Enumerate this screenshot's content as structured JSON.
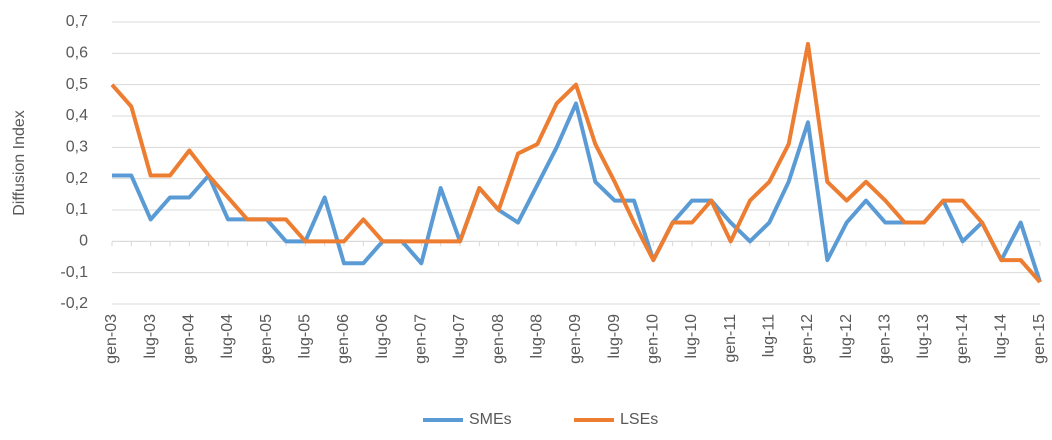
{
  "chart_data": {
    "type": "line",
    "y_label": "Diffusion Index",
    "categories": [
      "gen-03",
      null,
      "lug-03",
      null,
      "gen-04",
      null,
      "lug-04",
      null,
      "gen-05",
      null,
      "lug-05",
      null,
      "gen-06",
      null,
      "lug-06",
      null,
      "gen-07",
      null,
      "lug-07",
      null,
      "gen-08",
      null,
      "lug-08",
      null,
      "gen-09",
      null,
      "lug-09",
      null,
      "gen-10",
      null,
      "lug-10",
      null,
      "gen-11",
      null,
      "lug-11",
      null,
      "gen-12",
      null,
      "lug-12",
      null,
      "gen-13",
      null,
      "lug-13",
      null,
      "gen-14",
      null,
      "lug-14",
      null,
      "gen-15"
    ],
    "series": [
      {
        "name": "SMEs",
        "color": "#5b9bd5",
        "values": [
          0.21,
          0.21,
          0.07,
          0.14,
          0.14,
          0.21,
          0.07,
          0.07,
          0.07,
          0,
          0,
          0.14,
          -0.07,
          -0.07,
          0,
          0,
          -0.07,
          0.17,
          0,
          0.17,
          0.1,
          0.06,
          0.18,
          0.3,
          0.44,
          0.19,
          0.13,
          0.13,
          -0.06,
          0.06,
          0.13,
          0.13,
          0.06,
          0,
          0.06,
          0.19,
          0.38,
          -0.06,
          0.06,
          0.13,
          0.06,
          0.06,
          0.06,
          0.13,
          0,
          0.06,
          -0.06,
          0.06,
          -0.13
        ]
      },
      {
        "name": "LSEs",
        "color": "#ed7d31",
        "values": [
          0.5,
          0.43,
          0.21,
          0.21,
          0.29,
          0.21,
          0.14,
          0.07,
          0.07,
          0.07,
          0,
          0,
          0,
          0.07,
          0,
          0,
          0,
          0,
          0,
          0.17,
          0.1,
          0.28,
          0.31,
          0.44,
          0.5,
          0.31,
          0.19,
          0.06,
          -0.06,
          0.06,
          0.06,
          0.13,
          0,
          0.13,
          0.19,
          0.31,
          0.63,
          0.19,
          0.13,
          0.19,
          0.13,
          0.06,
          0.06,
          0.13,
          0.13,
          0.06,
          -0.06,
          -0.06,
          -0.13
        ]
      }
    ],
    "ylim": [
      -0.2,
      0.7
    ],
    "yticks": [
      {
        "value": -0.2,
        "label": "-0,2"
      },
      {
        "value": -0.1,
        "label": "-0,1"
      },
      0,
      {
        "value": 0.1,
        "label": "0,1"
      },
      {
        "value": 0.2,
        "label": "0,2"
      },
      {
        "value": 0.3,
        "label": "0,3"
      },
      {
        "value": 0.4,
        "label": "0,4"
      },
      {
        "value": 0.5,
        "label": "0,5"
      },
      {
        "value": 0.6,
        "label": "0,6"
      },
      {
        "value": 0.7,
        "label": "0,7"
      }
    ],
    "grid": true
  }
}
